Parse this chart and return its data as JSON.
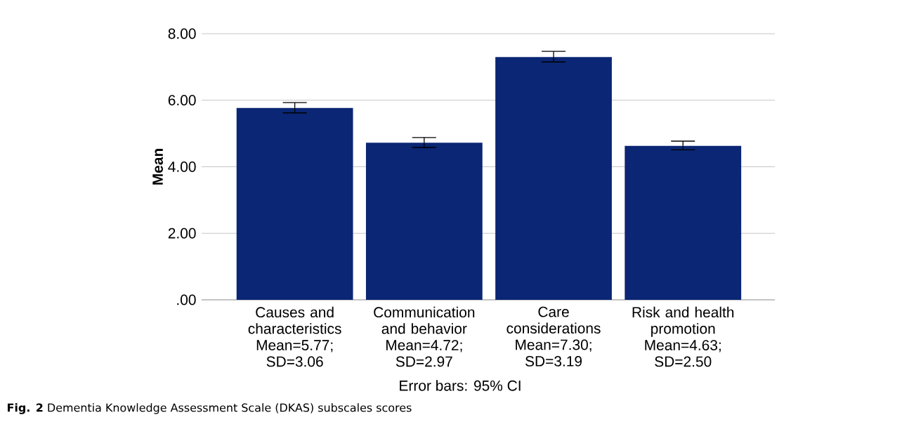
{
  "chart_data": {
    "type": "bar",
    "ylabel": "Mean",
    "categories": [
      "Causes and characteristics Mean=5.77; SD=3.06",
      "Communication and behavior Mean=4.72; SD=2.97",
      "Care considerations Mean=7.30; SD=3.19",
      "Risk and health promotion Mean=4.63; SD=2.50"
    ],
    "values": [
      5.77,
      4.72,
      7.3,
      4.63
    ],
    "errors": [
      [
        5.62,
        5.93
      ],
      [
        4.58,
        4.88
      ],
      [
        7.15,
        7.47
      ],
      [
        4.51,
        4.77
      ]
    ],
    "color": "#0a2674",
    "ylim": [
      0,
      8
    ],
    "yticks": [
      {
        "value": 0,
        "label": ".00"
      },
      {
        "value": 2,
        "label": "2.00"
      },
      {
        "value": 4,
        "label": "4.00"
      },
      {
        "value": 6,
        "label": "6.00"
      },
      {
        "value": 8,
        "label": "8.00"
      }
    ],
    "grid": "y",
    "annotations": [
      "Error bars: 95% CI",
      "**Fig. 2** Dementia Knowledge Assessment Scale (DKAS) subscales scores"
    ]
  }
}
